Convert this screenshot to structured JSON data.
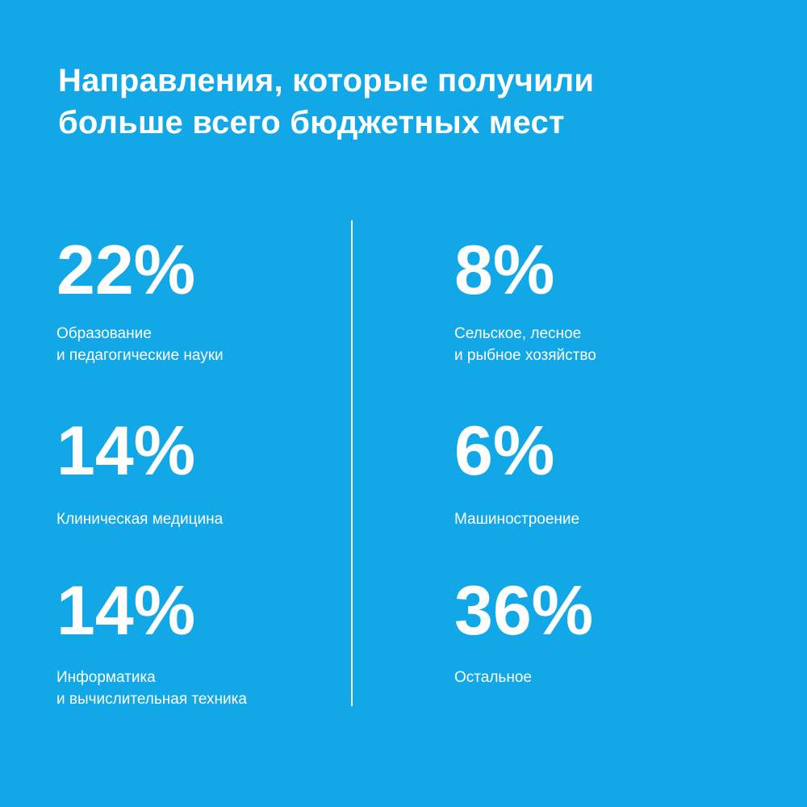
{
  "title": {
    "line1": "Направления, которые получили",
    "line2": "больше всего бюджетных мест"
  },
  "colors": {
    "background": "#12a7e6",
    "text": "#ffffff"
  },
  "chart_data": {
    "type": "table",
    "title": "Направления, которые получили больше всего бюджетных мест",
    "unit": "%",
    "items": [
      {
        "value": "22%",
        "share": 22,
        "label_lines": [
          "Образование",
          "и педагогические науки"
        ]
      },
      {
        "value": "14%",
        "share": 14,
        "label_lines": [
          "Клиническая медицина"
        ]
      },
      {
        "value": "14%",
        "share": 14,
        "label_lines": [
          "Информатика",
          "и вычислительная техника"
        ]
      },
      {
        "value": "8%",
        "share": 8,
        "label_lines": [
          "Сельское, лесное",
          "и рыбное хозяйство"
        ]
      },
      {
        "value": "6%",
        "share": 6,
        "label_lines": [
          "Машиностроение"
        ]
      },
      {
        "value": "36%",
        "share": 36,
        "label_lines": [
          "Остальное"
        ]
      }
    ]
  }
}
